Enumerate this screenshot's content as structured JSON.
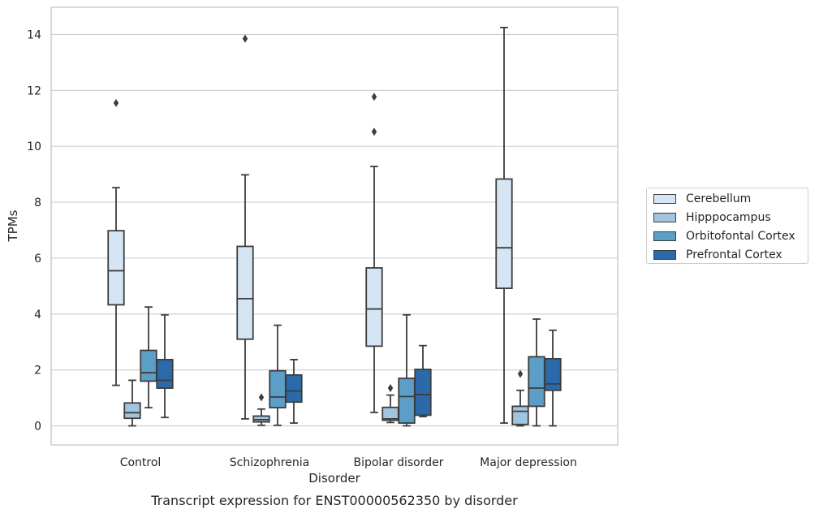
{
  "chart_data": {
    "type": "box",
    "title": "Transcript expression for ENST00000562350 by disorder",
    "xlabel": "Disorder",
    "ylabel": "TPMs",
    "ylim": [
      -0.7,
      14.95
    ],
    "yticks": [
      0,
      2,
      4,
      6,
      8,
      10,
      12,
      14
    ],
    "grid": "horizontal",
    "legend_position": "right",
    "categories": [
      "Control",
      "Schizophrenia",
      "Bipolar disorder",
      "Major depression"
    ],
    "series": [
      {
        "name": "Cerebellum",
        "color": "#d6e5f4",
        "boxes": [
          {
            "whislo": 1.45,
            "q1": 4.33,
            "med": 5.55,
            "q3": 6.98,
            "whishi": 8.52,
            "fliers": [
              11.55
            ]
          },
          {
            "whislo": 0.25,
            "q1": 3.1,
            "med": 4.55,
            "q3": 6.42,
            "whishi": 8.98,
            "fliers": [
              13.85
            ]
          },
          {
            "whislo": 0.48,
            "q1": 2.85,
            "med": 4.18,
            "q3": 5.65,
            "whishi": 9.28,
            "fliers": [
              10.52,
              11.77
            ]
          },
          {
            "whislo": 0.1,
            "q1": 4.92,
            "med": 6.37,
            "q3": 8.83,
            "whishi": 14.25,
            "fliers": []
          }
        ]
      },
      {
        "name": "Hipppocampus",
        "color": "#a1c5df",
        "boxes": [
          {
            "whislo": 0.0,
            "q1": 0.27,
            "med": 0.47,
            "q3": 0.82,
            "whishi": 1.63,
            "fliers": []
          },
          {
            "whislo": 0.02,
            "q1": 0.14,
            "med": 0.22,
            "q3": 0.35,
            "whishi": 0.6,
            "fliers": [
              1.02
            ]
          },
          {
            "whislo": 0.12,
            "q1": 0.2,
            "med": 0.25,
            "q3": 0.66,
            "whishi": 1.1,
            "fliers": [
              1.35
            ]
          },
          {
            "whislo": 0.0,
            "q1": 0.05,
            "med": 0.52,
            "q3": 0.7,
            "whishi": 1.27,
            "fliers": [
              1.86
            ]
          }
        ]
      },
      {
        "name": "Orbitofontal Cortex",
        "color": "#5b9fc9",
        "boxes": [
          {
            "whislo": 0.65,
            "q1": 1.6,
            "med": 1.9,
            "q3": 2.7,
            "whishi": 4.25,
            "fliers": []
          },
          {
            "whislo": 0.02,
            "q1": 0.65,
            "med": 1.03,
            "q3": 1.97,
            "whishi": 3.6,
            "fliers": []
          },
          {
            "whislo": 0.0,
            "q1": 0.1,
            "med": 1.05,
            "q3": 1.7,
            "whishi": 3.97,
            "fliers": []
          },
          {
            "whislo": 0.0,
            "q1": 0.7,
            "med": 1.35,
            "q3": 2.47,
            "whishi": 3.82,
            "fliers": []
          }
        ]
      },
      {
        "name": "Prefrontal Cortex",
        "color": "#2a6aab",
        "boxes": [
          {
            "whislo": 0.3,
            "q1": 1.35,
            "med": 1.63,
            "q3": 2.37,
            "whishi": 3.97,
            "fliers": []
          },
          {
            "whislo": 0.1,
            "q1": 0.85,
            "med": 1.25,
            "q3": 1.82,
            "whishi": 2.37,
            "fliers": []
          },
          {
            "whislo": 0.33,
            "q1": 0.38,
            "med": 1.12,
            "q3": 2.02,
            "whishi": 2.87,
            "fliers": []
          },
          {
            "whislo": 0.0,
            "q1": 1.27,
            "med": 1.5,
            "q3": 2.4,
            "whishi": 3.42,
            "fliers": []
          }
        ]
      }
    ]
  }
}
